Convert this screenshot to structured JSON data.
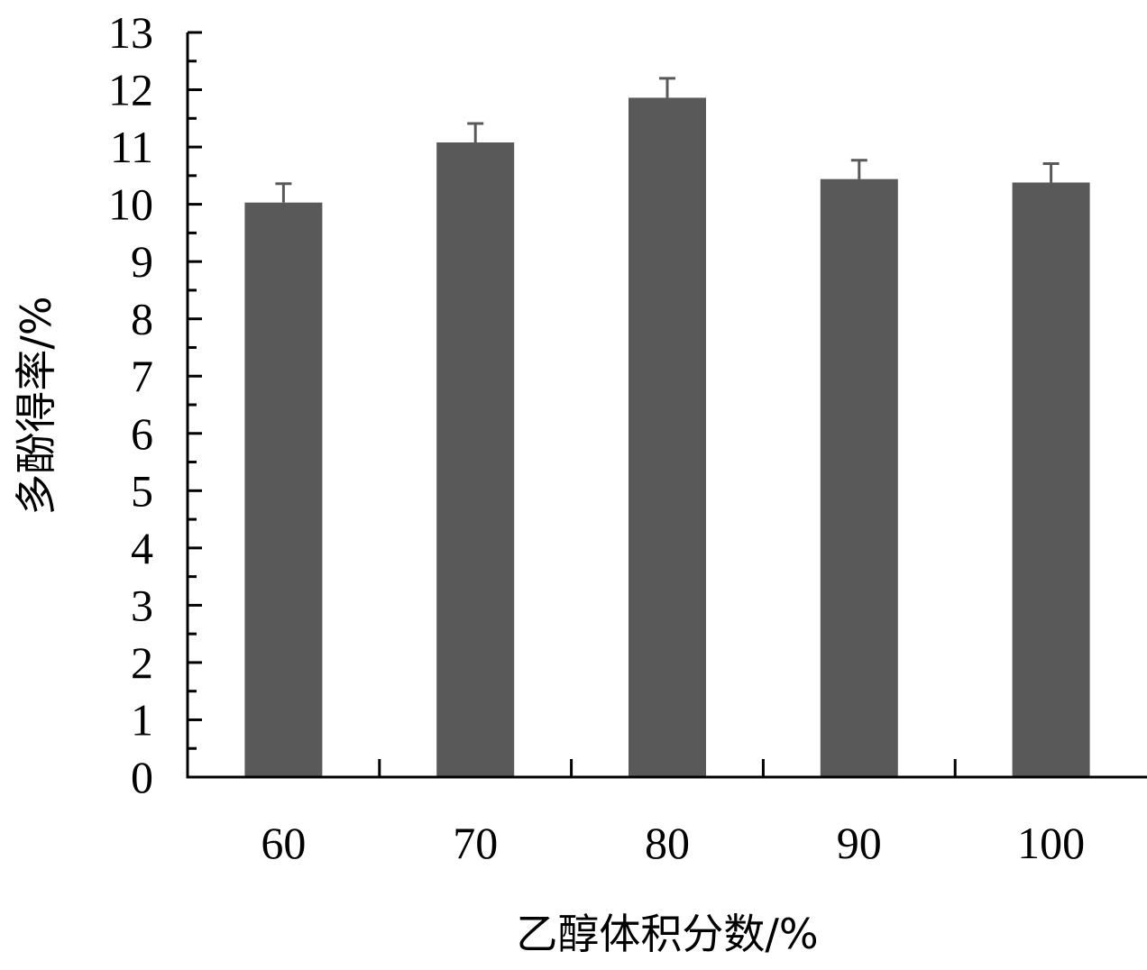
{
  "chart_data": {
    "type": "bar",
    "title": "",
    "xlabel": "乙醇体积分数/%",
    "ylabel": "多酚得率/%",
    "categories": [
      "60",
      "70",
      "80",
      "90",
      "100"
    ],
    "values": [
      10.03,
      11.08,
      11.86,
      10.44,
      10.38
    ],
    "error": [
      0.33,
      0.33,
      0.34,
      0.33,
      0.33
    ],
    "ylim": [
      0,
      13
    ],
    "yticks": [
      "0",
      "1",
      "2",
      "3",
      "4",
      "5",
      "6",
      "7",
      "8",
      "9",
      "10",
      "11",
      "12",
      "13"
    ],
    "grid": false,
    "legend": "none",
    "bar_color": "#595959",
    "axis_color": "#000000"
  }
}
